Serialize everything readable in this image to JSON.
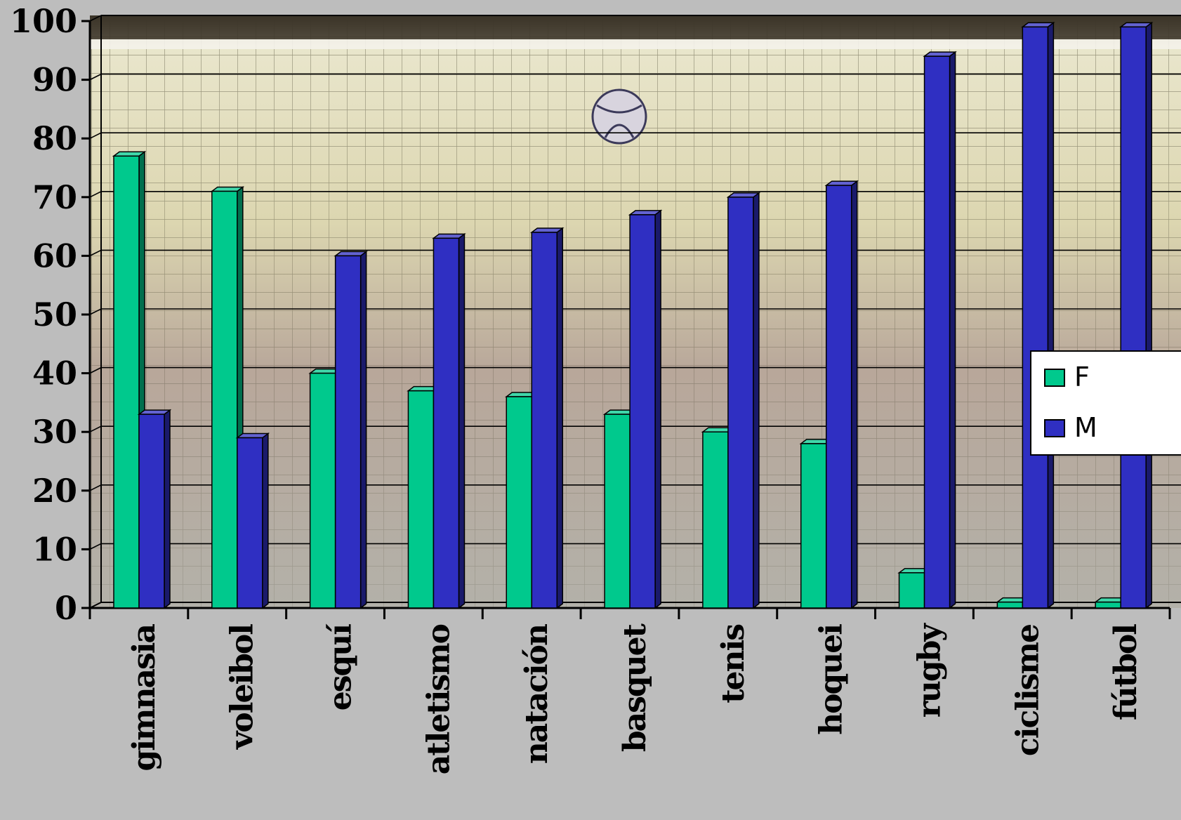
{
  "chart_data": {
    "type": "bar",
    "categories": [
      "gimnasia",
      "voleibol",
      "esquí",
      "atletismo",
      "natación",
      "basquet",
      "tenis",
      "hoquei",
      "rugby",
      "ciclisme",
      "fútbol"
    ],
    "series": [
      {
        "name": "F",
        "color": "#00c98d",
        "values": [
          77,
          71,
          40,
          37,
          36,
          33,
          30,
          28,
          6,
          1,
          1
        ]
      },
      {
        "name": "M",
        "color": "#2f2fc2",
        "values": [
          33,
          29,
          60,
          63,
          64,
          67,
          70,
          72,
          94,
          99,
          99
        ]
      }
    ],
    "ylim": [
      0,
      100
    ],
    "yticks": [
      "0",
      "10",
      "20",
      "30",
      "40",
      "50",
      "60",
      "70",
      "80",
      "90",
      "100"
    ],
    "grid": true,
    "legend": "right"
  }
}
